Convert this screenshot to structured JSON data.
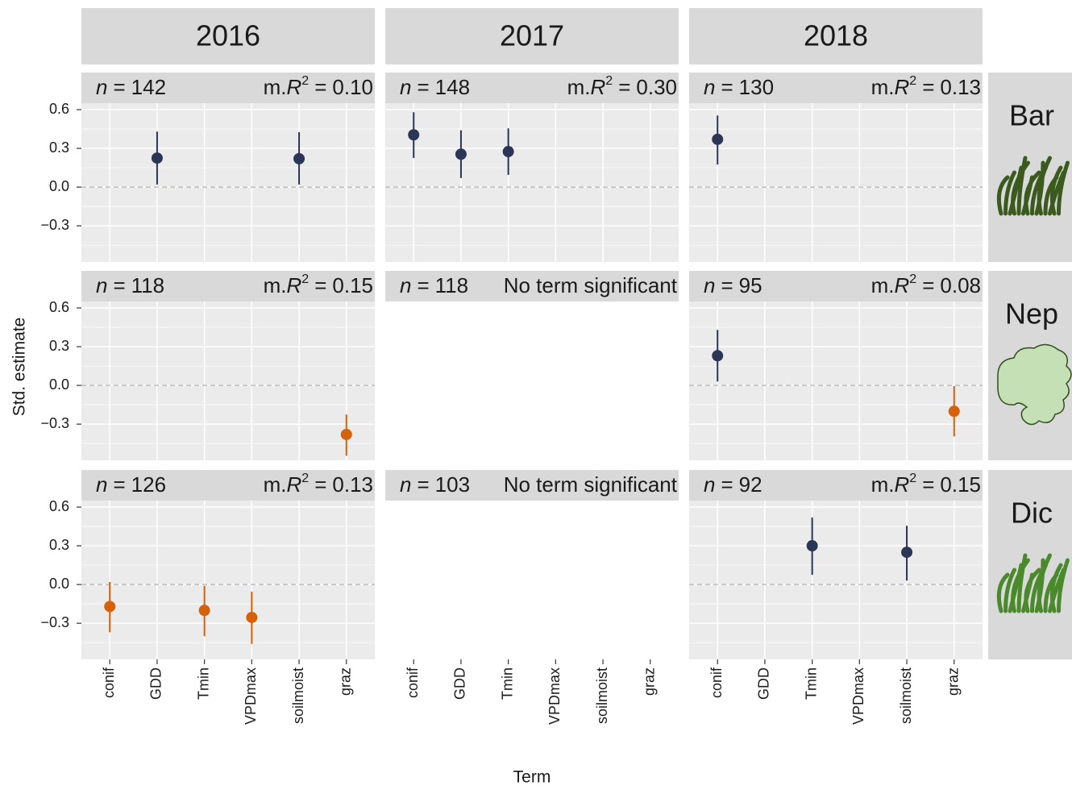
{
  "chart_data": {
    "type": "pointrange",
    "x_label": "Term",
    "y_label": "Std. estimate",
    "categories": [
      "conif",
      "GDD",
      "Tmin",
      "VPDmax",
      "soilmoist",
      "graz"
    ],
    "ylim": [
      -0.58,
      0.65
    ],
    "yticks": [
      {
        "value": -0.3,
        "label": "−0.3"
      },
      {
        "value": 0,
        "label": "0.0"
      },
      0.3,
      0.6
    ],
    "grid": true,
    "columns": [
      "2016",
      "2017",
      "2018"
    ],
    "rows": [
      "Bar",
      "Nep",
      "Dic"
    ],
    "n_symbol": "n",
    "equals": "=",
    "fit_symbol": [
      "m.",
      "R",
      "2"
    ],
    "panels": [
      [
        {
          "n": 142,
          "fit": "0.10",
          "points": [
            {
              "term": "GDD",
              "value": 0.225,
              "lower": 0.02,
              "upper": 0.43,
              "color": "#2b3656"
            },
            {
              "term": "soilmoist",
              "value": 0.22,
              "lower": 0.02,
              "upper": 0.425,
              "color": "#2b3656"
            }
          ]
        },
        {
          "n": 148,
          "fit": "0.30",
          "points": [
            {
              "term": "conif",
              "value": 0.405,
              "lower": 0.225,
              "upper": 0.58,
              "color": "#2b3656"
            },
            {
              "term": "GDD",
              "value": 0.255,
              "lower": 0.07,
              "upper": 0.44,
              "color": "#2b3656"
            },
            {
              "term": "Tmin",
              "value": 0.275,
              "lower": 0.095,
              "upper": 0.455,
              "color": "#2b3656"
            }
          ]
        },
        {
          "n": 130,
          "fit": "0.13",
          "points": [
            {
              "term": "conif",
              "value": 0.37,
              "lower": 0.175,
              "upper": 0.555,
              "color": "#2b3656"
            }
          ]
        }
      ],
      [
        {
          "n": 118,
          "fit": "0.15",
          "points": [
            {
              "term": "graz",
              "value": -0.38,
              "lower": -0.545,
              "upper": -0.225,
              "color": "#d5620a"
            }
          ]
        },
        {
          "n": 118,
          "note": "No term significant",
          "points": []
        },
        {
          "n": 95,
          "fit": "0.08",
          "points": [
            {
              "term": "conif",
              "value": 0.23,
              "lower": 0.03,
              "upper": 0.43,
              "color": "#2b3656"
            },
            {
              "term": "graz",
              "value": -0.2,
              "lower": -0.395,
              "upper": -0.005,
              "color": "#d5620a"
            }
          ]
        }
      ],
      [
        {
          "n": 126,
          "fit": "0.13",
          "points": [
            {
              "term": "conif",
              "value": -0.17,
              "lower": -0.37,
              "upper": 0.02,
              "color": "#d5620a"
            },
            {
              "term": "Tmin",
              "value": -0.2,
              "lower": -0.4,
              "upper": -0.01,
              "color": "#d5620a"
            },
            {
              "term": "VPDmax",
              "value": -0.255,
              "lower": -0.46,
              "upper": -0.055,
              "color": "#d5620a"
            }
          ]
        },
        {
          "n": 103,
          "note": "No term significant",
          "points": []
        },
        {
          "n": 92,
          "fit": "0.15",
          "points": [
            {
              "term": "Tmin",
              "value": 0.3,
              "lower": 0.075,
              "upper": 0.52,
              "color": "#2b3656"
            },
            {
              "term": "soilmoist",
              "value": 0.25,
              "lower": 0.03,
              "upper": 0.455,
              "color": "#2b3656"
            }
          ]
        }
      ]
    ]
  }
}
